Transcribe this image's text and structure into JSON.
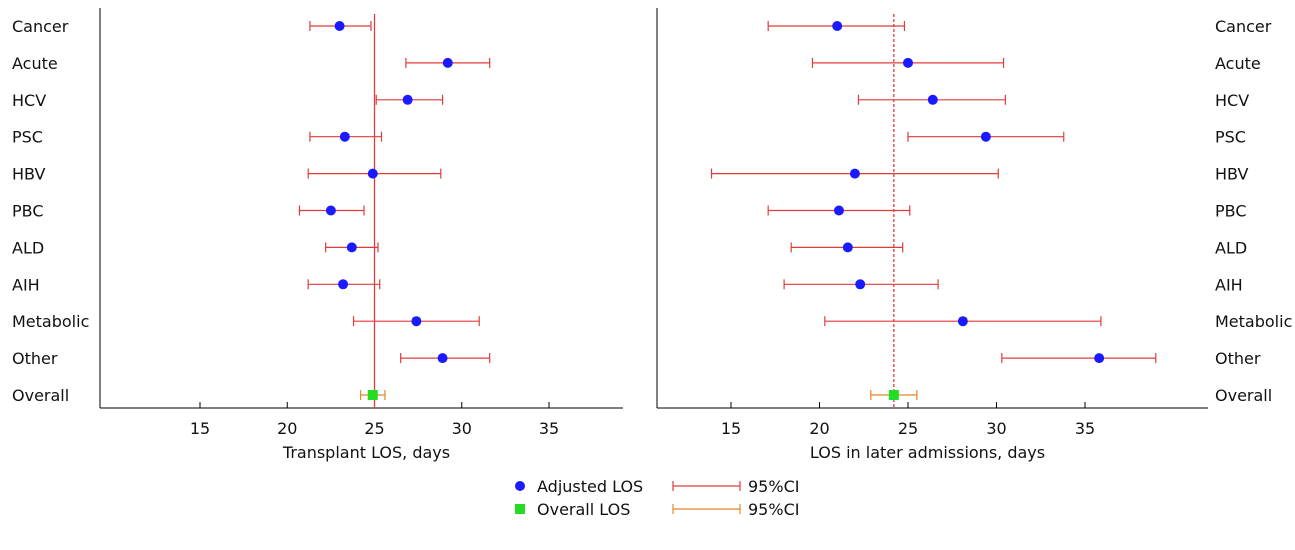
{
  "chart_data": [
    {
      "type": "scatter",
      "xlabel": "Transplant LOS, days",
      "xlim": [
        10,
        39
      ],
      "xticks": [
        15,
        20,
        25,
        30,
        35
      ],
      "reference_line": {
        "value": 25,
        "style": "solid",
        "color": "#e03c3c"
      },
      "label_side": "left",
      "categories": [
        "Cancer",
        "Acute",
        "HCV",
        "PSC",
        "HBV",
        "PBC",
        "ALD",
        "AIH",
        "Metabolic",
        "Other",
        "Overall"
      ],
      "series": [
        {
          "name": "Adjusted LOS",
          "color": "#1a1aff",
          "ci_color": "#e03c3c",
          "values": [
            {
              "category": "Cancer",
              "y": 23.0,
              "lo": 21.3,
              "hi": 24.8
            },
            {
              "category": "Acute",
              "y": 29.2,
              "lo": 26.8,
              "hi": 31.6
            },
            {
              "category": "HCV",
              "y": 26.9,
              "lo": 25.1,
              "hi": 28.9
            },
            {
              "category": "PSC",
              "y": 23.3,
              "lo": 21.3,
              "hi": 25.4
            },
            {
              "category": "HBV",
              "y": 24.9,
              "lo": 21.2,
              "hi": 28.8
            },
            {
              "category": "PBC",
              "y": 22.5,
              "lo": 20.7,
              "hi": 24.4
            },
            {
              "category": "ALD",
              "y": 23.7,
              "lo": 22.2,
              "hi": 25.2
            },
            {
              "category": "AIH",
              "y": 23.2,
              "lo": 21.2,
              "hi": 25.3
            },
            {
              "category": "Metabolic",
              "y": 27.4,
              "lo": 23.8,
              "hi": 31.0
            },
            {
              "category": "Other",
              "y": 28.9,
              "lo": 26.5,
              "hi": 31.6
            }
          ]
        },
        {
          "name": "Overall LOS",
          "color": "#22dd22",
          "ci_color": "#e8852a",
          "values": [
            {
              "category": "Overall",
              "y": 24.9,
              "lo": 24.2,
              "hi": 25.6
            }
          ]
        }
      ]
    },
    {
      "type": "scatter",
      "xlabel": "LOS in later admissions, days",
      "xlim": [
        10,
        39
      ],
      "xticks": [
        15,
        20,
        25,
        30,
        35
      ],
      "reference_line": {
        "value": 24.2,
        "style": "dashed",
        "color": "#e03c3c"
      },
      "label_side": "right",
      "categories": [
        "Cancer",
        "Acute",
        "HCV",
        "PSC",
        "HBV",
        "PBC",
        "ALD",
        "AIH",
        "Metabolic",
        "Other",
        "Overall"
      ],
      "series": [
        {
          "name": "Adjusted LOS",
          "color": "#1a1aff",
          "ci_color": "#e03c3c",
          "values": [
            {
              "category": "Cancer",
              "y": 21.0,
              "lo": 17.1,
              "hi": 24.8
            },
            {
              "category": "Acute",
              "y": 25.0,
              "lo": 19.6,
              "hi": 30.4
            },
            {
              "category": "HCV",
              "y": 26.4,
              "lo": 22.2,
              "hi": 30.5
            },
            {
              "category": "PSC",
              "y": 29.4,
              "lo": 25.0,
              "hi": 33.8
            },
            {
              "category": "HBV",
              "y": 22.0,
              "lo": 13.9,
              "hi": 30.1
            },
            {
              "category": "PBC",
              "y": 21.1,
              "lo": 17.1,
              "hi": 25.1
            },
            {
              "category": "ALD",
              "y": 21.6,
              "lo": 18.4,
              "hi": 24.7
            },
            {
              "category": "AIH",
              "y": 22.3,
              "lo": 18.0,
              "hi": 26.7
            },
            {
              "category": "Metabolic",
              "y": 28.1,
              "lo": 20.3,
              "hi": 35.9
            },
            {
              "category": "Other",
              "y": 35.8,
              "lo": 30.3,
              "hi": 39.0
            }
          ]
        },
        {
          "name": "Overall LOS",
          "color": "#22dd22",
          "ci_color": "#e8852a",
          "values": [
            {
              "category": "Overall",
              "y": 24.2,
              "lo": 22.9,
              "hi": 25.5
            }
          ]
        }
      ]
    }
  ],
  "legend": {
    "placement": "bottom-center",
    "items": [
      {
        "marker": "circle",
        "marker_color": "#1a1aff",
        "label": "Adjusted LOS",
        "ci_color": "#e03c3c",
        "ci_label": "95%CI"
      },
      {
        "marker": "square",
        "marker_color": "#22dd22",
        "label": "Overall LOS",
        "ci_color": "#e8852a",
        "ci_label": "95%CI"
      }
    ]
  }
}
